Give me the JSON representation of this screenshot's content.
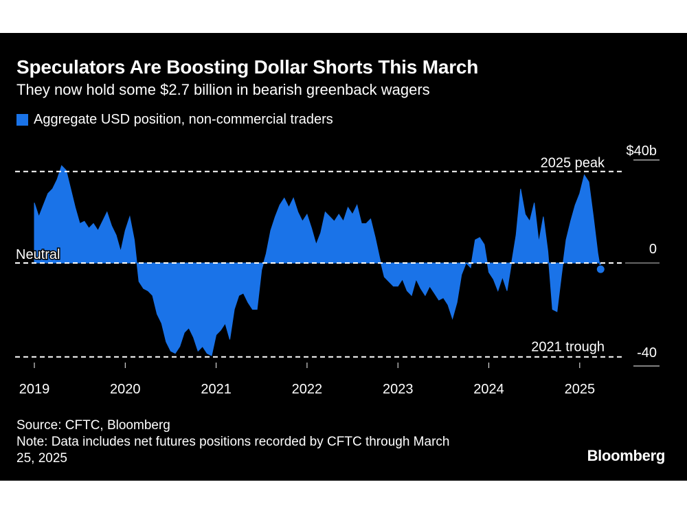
{
  "title": "Speculators Are Boosting Dollar Shorts This March",
  "subtitle": "They now hold some $2.7 billion in bearish greenback wagers",
  "source": "Source: CFTC, Bloomberg",
  "note_line1": "Note: Data includes net futures positions recorded by CFTC through March",
  "note_line2": "25, 2025",
  "brand": "Bloomberg",
  "colors": {
    "series": "#1a73e8",
    "background": "#000000",
    "text": "#ffffff"
  },
  "chart_data": {
    "type": "area",
    "title": "Speculators Are Boosting Dollar Shorts This March",
    "subtitle": "They now hold some $2.7 billion in bearish greenback wagers",
    "legend_position": "top-left",
    "grid": false,
    "ylim": [
      -40,
      40
    ],
    "y_ticks": [
      {
        "value": 40,
        "label": "$40b"
      },
      {
        "value": 0,
        "label": "0"
      },
      {
        "value": -40,
        "label": "-40"
      }
    ],
    "x_ticks": [
      "2019",
      "2020",
      "2021",
      "2022",
      "2023",
      "2024",
      "2025"
    ],
    "reference_lines": [
      {
        "value": 39.5,
        "label": "2025 peak"
      },
      {
        "value": 0,
        "label": "Neutral"
      },
      {
        "value": -40.5,
        "label": "2021 trough"
      }
    ],
    "series": [
      {
        "name": "Aggregate USD position, non-commercial traders",
        "x": [
          2019.0,
          2019.05,
          2019.1,
          2019.15,
          2019.2,
          2019.25,
          2019.3,
          2019.35,
          2019.4,
          2019.45,
          2019.5,
          2019.55,
          2019.6,
          2019.65,
          2019.7,
          2019.75,
          2019.8,
          2019.85,
          2019.9,
          2019.95,
          2020.0,
          2020.05,
          2020.1,
          2020.15,
          2020.2,
          2020.25,
          2020.3,
          2020.35,
          2020.4,
          2020.45,
          2020.5,
          2020.55,
          2020.6,
          2020.65,
          2020.7,
          2020.75,
          2020.8,
          2020.85,
          2020.9,
          2020.95,
          2021.0,
          2021.05,
          2021.1,
          2021.15,
          2021.2,
          2021.25,
          2021.3,
          2021.35,
          2021.4,
          2021.45,
          2021.5,
          2021.55,
          2021.6,
          2021.65,
          2021.7,
          2021.75,
          2021.8,
          2021.85,
          2021.9,
          2021.95,
          2022.0,
          2022.05,
          2022.1,
          2022.15,
          2022.2,
          2022.25,
          2022.3,
          2022.35,
          2022.4,
          2022.45,
          2022.5,
          2022.55,
          2022.6,
          2022.65,
          2022.7,
          2022.75,
          2022.8,
          2022.85,
          2022.9,
          2022.95,
          2023.0,
          2023.05,
          2023.1,
          2023.15,
          2023.2,
          2023.25,
          2023.3,
          2023.35,
          2023.4,
          2023.45,
          2023.5,
          2023.55,
          2023.6,
          2023.65,
          2023.7,
          2023.75,
          2023.8,
          2023.85,
          2023.9,
          2023.95,
          2024.0,
          2024.05,
          2024.1,
          2024.15,
          2024.2,
          2024.25,
          2024.3,
          2024.35,
          2024.4,
          2024.45,
          2024.5,
          2024.55,
          2024.6,
          2024.65,
          2024.7,
          2024.75,
          2024.8,
          2024.85,
          2024.9,
          2024.95,
          2025.0,
          2025.05,
          2025.1,
          2025.15,
          2025.2,
          2025.23
        ],
        "values": [
          26,
          20,
          25,
          30,
          32,
          36,
          42,
          40,
          32,
          24,
          17,
          18,
          15,
          17,
          14,
          18,
          22,
          16,
          12,
          5,
          14,
          20,
          10,
          -8,
          -11,
          -12,
          -14,
          -22,
          -26,
          -34,
          -38,
          -39,
          -36,
          -30,
          -28,
          -32,
          -38,
          -36,
          -39,
          -40,
          -31,
          -29,
          -26,
          -33,
          -20,
          -14,
          -13,
          -17,
          -20,
          -20,
          -3,
          4,
          14,
          20,
          25,
          28,
          24,
          28,
          22,
          18,
          21,
          15,
          8,
          13,
          22,
          20,
          18,
          21,
          18,
          24,
          21,
          25,
          17,
          17,
          19,
          11,
          2,
          -6,
          -8,
          -10,
          -10,
          -7,
          -12,
          -14,
          -7,
          -11,
          -14,
          -10,
          -13,
          -16,
          -15,
          -18,
          -24,
          -17,
          -5,
          0,
          -2,
          10,
          11,
          8,
          -4,
          -7,
          -12,
          -6,
          -12,
          0,
          12,
          32,
          21,
          18,
          26,
          9,
          20,
          5,
          -20,
          -21,
          -5,
          10,
          18,
          25,
          30,
          38,
          35,
          20,
          4,
          -3
        ]
      }
    ],
    "endpoint_marker": {
      "x": 2025.23,
      "y": -2.7
    }
  }
}
